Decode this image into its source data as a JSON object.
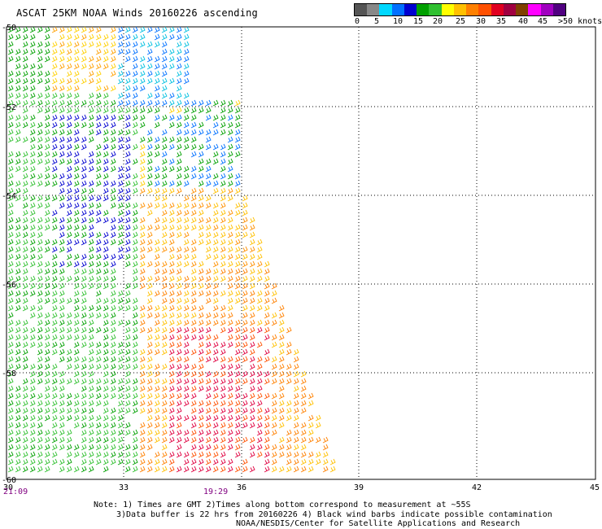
{
  "title": "ASCAT 25KM NOAA Winds 20160226 ascending",
  "speed_scale": {
    "colors": [
      "#555555",
      "#888888",
      "#00d8ff",
      "#0070ff",
      "#0000d0",
      "#00a000",
      "#30c030",
      "#ffff00",
      "#ffc000",
      "#ff8000",
      "#ff5000",
      "#e00020",
      "#a00040",
      "#804000",
      "#ff00ff",
      "#a000c0",
      "#500080"
    ],
    "labels": [
      "0",
      "5",
      "10",
      "15",
      "20",
      "25",
      "30",
      "35",
      "40",
      "45",
      ">50 knots"
    ]
  },
  "map": {
    "lon_ticks": [
      "30",
      "33",
      "36",
      "39",
      "42",
      "45"
    ],
    "lat_ticks": [
      "-50",
      "-52",
      "-54",
      "-56",
      "-58",
      "-60"
    ],
    "times": [
      "21:09",
      "19:29"
    ]
  },
  "notes": {
    "line1": "Note: 1) Times are GMT 2)Times along bottom correspond to measurement at ~55S",
    "line2": "3)Data buffer is 22 hrs from 20160226 4) Black wind barbs indicate possible contamination",
    "line3": "NOAA/NESDIS/Center for Satellite Applications and Research"
  }
}
